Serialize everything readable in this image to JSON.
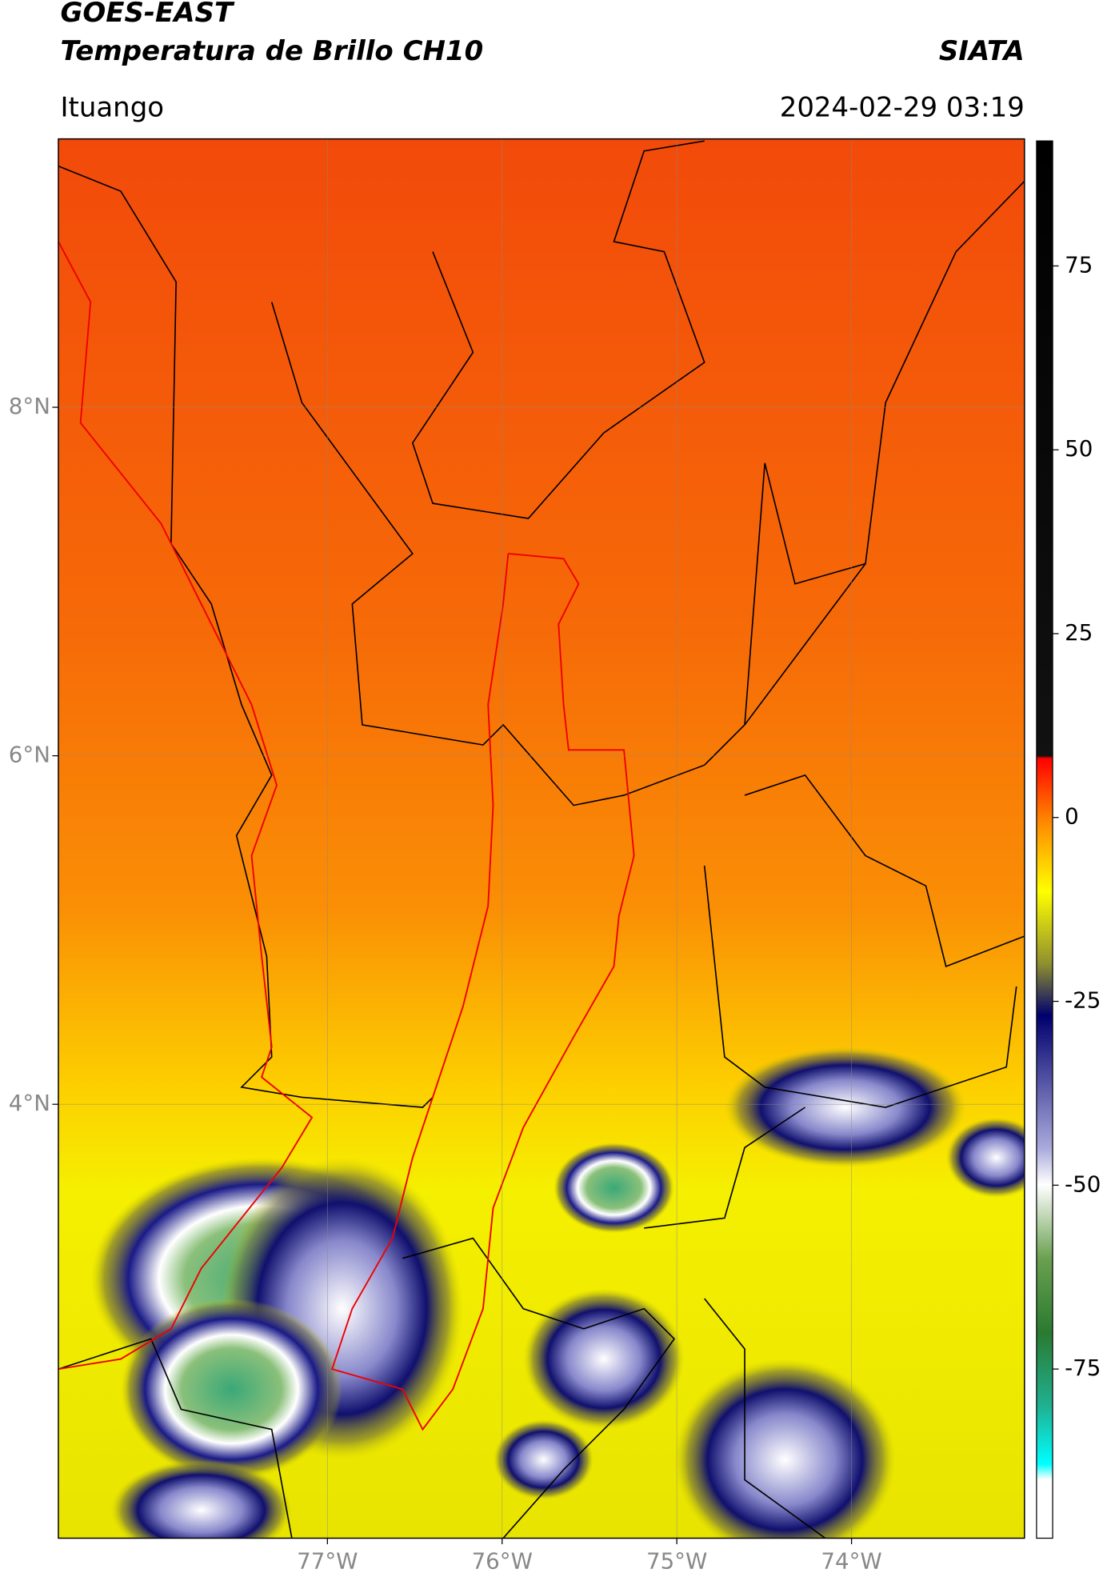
{
  "header": {
    "title": "GOES-EAST",
    "subtitle": "Temperatura de Brillo CH10",
    "source": "SIATA",
    "location": "Ituango",
    "timestamp": "2024-02-29 03:19"
  },
  "map": {
    "lat_range": [
      1.51,
      9.54
    ],
    "lon_range": [
      -78.54,
      -73.01
    ],
    "lat_ticks": [
      {
        "value": 8,
        "label": "8°N"
      },
      {
        "value": 6,
        "label": "6°N"
      },
      {
        "value": 4,
        "label": "4°N"
      }
    ],
    "lon_ticks": [
      {
        "value": -77,
        "label": "77°W"
      },
      {
        "value": -76,
        "label": "76°W"
      },
      {
        "value": -75,
        "label": "75°W"
      },
      {
        "value": -74,
        "label": "74°W"
      }
    ]
  },
  "colorbar": {
    "lim": [
      -98,
      92
    ],
    "ticks": [
      75,
      50,
      25,
      0,
      -25,
      -50,
      -75
    ]
  }
}
